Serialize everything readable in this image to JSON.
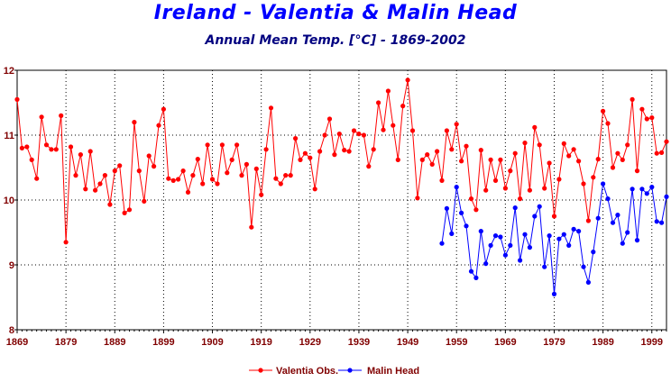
{
  "chart_data": {
    "type": "line",
    "title": "Ireland - Valentia & Malin Head",
    "subtitle": "Annual Mean Temp. [°C] - 1869-2002",
    "xlabel": "",
    "ylabel": "",
    "xlim": [
      1869,
      2002
    ],
    "ylim": [
      8,
      12
    ],
    "x_ticks": [
      1869,
      1879,
      1889,
      1899,
      1909,
      1919,
      1929,
      1939,
      1949,
      1959,
      1969,
      1979,
      1989,
      1999
    ],
    "y_ticks": [
      8,
      9,
      10,
      11,
      12
    ],
    "grid": true,
    "legend_position": "bottom",
    "series": [
      {
        "name": "Valentia Obs.",
        "color": "#ff0000",
        "x_start": 1869,
        "values": [
          11.55,
          10.8,
          10.82,
          10.62,
          10.33,
          11.28,
          10.85,
          10.78,
          10.78,
          11.3,
          9.35,
          10.82,
          10.38,
          10.7,
          10.17,
          10.75,
          10.15,
          10.25,
          10.38,
          9.93,
          10.45,
          10.53,
          9.8,
          9.85,
          11.2,
          10.45,
          9.98,
          10.68,
          10.52,
          11.15,
          11.4,
          10.33,
          10.3,
          10.32,
          10.45,
          10.12,
          10.38,
          10.63,
          10.25,
          10.85,
          10.32,
          10.25,
          10.85,
          10.42,
          10.62,
          10.85,
          10.38,
          10.55,
          9.58,
          10.48,
          10.08,
          10.78,
          11.42,
          10.33,
          10.25,
          10.38,
          10.38,
          10.95,
          10.62,
          10.72,
          10.65,
          10.17,
          10.75,
          11.0,
          11.25,
          10.7,
          11.02,
          10.77,
          10.75,
          11.07,
          11.02,
          11.0,
          10.52,
          10.78,
          11.5,
          11.08,
          11.68,
          11.15,
          10.62,
          11.45,
          11.85,
          11.07,
          10.03,
          10.62,
          10.7,
          10.55,
          10.75,
          10.3,
          11.07,
          10.78,
          11.17,
          10.6,
          10.83,
          10.02,
          9.85,
          10.77,
          10.15,
          10.62,
          10.3,
          10.62,
          10.18,
          10.45,
          10.72,
          10.02,
          10.88,
          10.15,
          11.12,
          10.85,
          10.18,
          10.57,
          9.75,
          10.32,
          10.87,
          10.68,
          10.78,
          10.6,
          10.25,
          9.68,
          10.35,
          10.63,
          11.37,
          11.18,
          10.5,
          10.72,
          10.62,
          10.85,
          11.55,
          10.45,
          11.4,
          11.25,
          11.27,
          10.72,
          10.73,
          10.9
        ]
      },
      {
        "name": "Malin Head",
        "color": "#0000ff",
        "x_start": 1956,
        "values": [
          9.33,
          9.87,
          9.48,
          10.2,
          9.8,
          9.6,
          8.9,
          8.8,
          9.52,
          9.02,
          9.3,
          9.45,
          9.43,
          9.15,
          9.3,
          9.88,
          9.07,
          9.47,
          9.27,
          9.75,
          9.9,
          8.97,
          9.45,
          8.55,
          9.4,
          9.47,
          9.3,
          9.55,
          9.52,
          8.97,
          8.73,
          9.2,
          9.72,
          10.25,
          10.02,
          9.65,
          9.77,
          9.33,
          9.5,
          10.17,
          9.38,
          10.17,
          10.1,
          10.2,
          9.67,
          9.65,
          10.05
        ]
      }
    ]
  }
}
